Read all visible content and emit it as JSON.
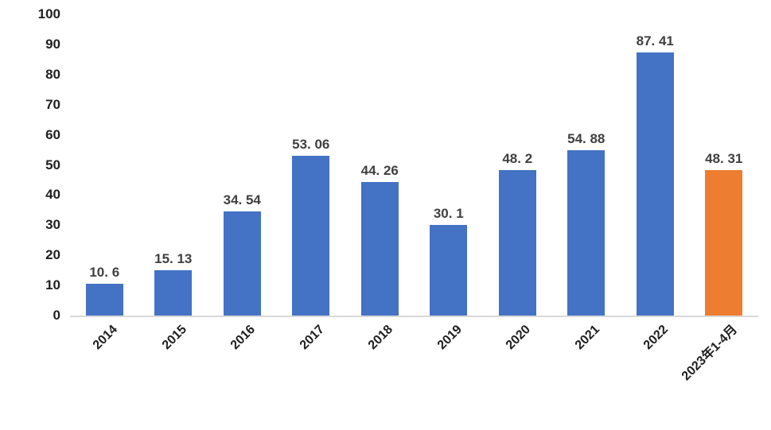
{
  "chart_data": {
    "type": "bar",
    "title": "",
    "xlabel": "",
    "ylabel": "",
    "categories": [
      "2014",
      "2015",
      "2016",
      "2017",
      "2018",
      "2019",
      "2020",
      "2021",
      "2022",
      "2023年1-4月"
    ],
    "values": [
      10.6,
      15.13,
      34.54,
      53.06,
      44.26,
      30.1,
      48.2,
      54.88,
      87.41,
      48.31
    ],
    "data_labels": [
      "10. 6",
      "15. 13",
      "34. 54",
      "53. 06",
      "44. 26",
      "30. 1",
      "48. 2",
      "54. 88",
      "87. 41",
      "48. 31"
    ],
    "ylim": [
      0,
      100
    ],
    "y_ticks": [
      0,
      10,
      20,
      30,
      40,
      50,
      60,
      70,
      80,
      90,
      100
    ],
    "grid": false,
    "legend": "none",
    "highlight_index": 9,
    "colors": {
      "bar": "#4472C4",
      "highlight_bar": "#ED7D31",
      "axis_line": "#D9D9D9",
      "tick_label": "#1F1F1F",
      "data_label": "#404040"
    }
  }
}
